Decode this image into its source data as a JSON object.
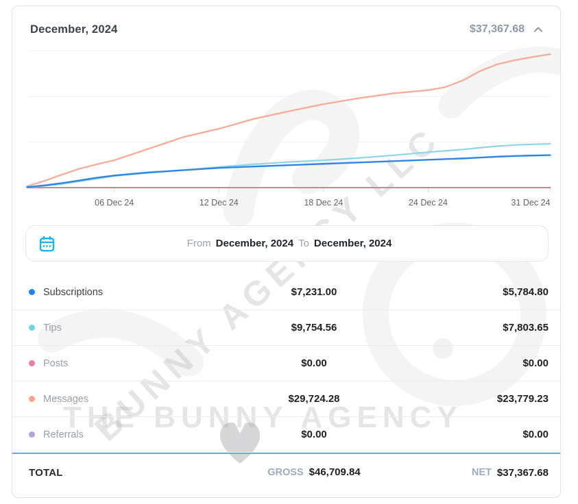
{
  "header": {
    "title": "December, 2024",
    "amount": "$37,367.68"
  },
  "date_range": {
    "from_label": "From",
    "from_value": "December, 2024",
    "to_label": "To",
    "to_value": "December, 2024"
  },
  "table": {
    "rows": [
      {
        "label": "Subscriptions",
        "gross": "$7,231.00",
        "net": "$5,784.80",
        "color": "#2186eb"
      },
      {
        "label": "Tips",
        "gross": "$9,754.56",
        "net": "$7,803.65",
        "color": "#72d5de"
      },
      {
        "label": "Posts",
        "gross": "$0.00",
        "net": "$0.00",
        "color": "#ef7da0"
      },
      {
        "label": "Messages",
        "gross": "$29,724.28",
        "net": "$23,779.23",
        "color": "#fca58a"
      },
      {
        "label": "Referrals",
        "gross": "$0.00",
        "net": "$0.00",
        "color": "#b6a3dc"
      }
    ],
    "total": {
      "label": "TOTAL",
      "gross_label": "GROSS",
      "gross_value": "$46,709.84",
      "net_label": "NET",
      "net_value": "$37,367.68"
    }
  },
  "watermark": {
    "diagonal": "BUNNY AGENCY LLC",
    "horizontal": "THE BUNNY AGENCY"
  },
  "chart_data": {
    "type": "line",
    "title": "December, 2024 cumulative earnings by category (USD)",
    "xlabel": "",
    "ylabel": "",
    "x_range": [
      1,
      31
    ],
    "ylim": [
      0,
      30500
    ],
    "grid": "horizontal",
    "gridline_count": 4,
    "legend_position": "table-below",
    "x_ticks": [
      {
        "day": 6,
        "label": "06 Dec 24"
      },
      {
        "day": 12,
        "label": "12 Dec 24"
      },
      {
        "day": 18,
        "label": "18 Dec 24"
      },
      {
        "day": 24,
        "label": "24 Dec 24"
      },
      {
        "day": 31,
        "label": "31 Dec 24"
      }
    ],
    "days": [
      1,
      2,
      3,
      4,
      5,
      6,
      8,
      10,
      12,
      14,
      16,
      18,
      20,
      22,
      24,
      25,
      26,
      27,
      28,
      29,
      30,
      31
    ],
    "series": [
      {
        "name": "Referrals",
        "color": "#b6a3dc",
        "width": 2,
        "values": [
          0,
          0,
          0,
          0,
          0,
          0,
          0,
          0,
          0,
          0,
          0,
          0,
          0,
          0,
          0,
          0,
          0,
          0,
          0,
          0,
          0,
          0
        ]
      },
      {
        "name": "Posts",
        "color": "#dc7d93",
        "width": 2,
        "values": [
          0,
          0,
          0,
          0,
          0,
          0,
          0,
          0,
          0,
          0,
          0,
          0,
          0,
          0,
          0,
          0,
          0,
          0,
          0,
          0,
          0,
          0
        ]
      },
      {
        "name": "Messages",
        "color": "#f7ae99",
        "width": 2.4,
        "values": [
          300,
          1500,
          2900,
          4200,
          5200,
          6100,
          8700,
          11300,
          13100,
          15300,
          17000,
          18600,
          19900,
          21000,
          21700,
          22400,
          23900,
          26000,
          27500,
          28400,
          29100,
          29724
        ]
      },
      {
        "name": "Tips",
        "color": "#8bd7e3",
        "width": 2.2,
        "values": [
          80,
          400,
          800,
          1400,
          2000,
          2600,
          3300,
          3900,
          4600,
          5200,
          5700,
          6100,
          6600,
          7200,
          7900,
          8200,
          8500,
          8900,
          9250,
          9500,
          9650,
          9754
        ]
      },
      {
        "name": "Subscriptions",
        "color": "#2e86e6",
        "width": 2.4,
        "values": [
          100,
          500,
          1000,
          1600,
          2200,
          2700,
          3400,
          3900,
          4400,
          4700,
          5000,
          5300,
          5600,
          5900,
          6200,
          6350,
          6500,
          6700,
          6900,
          7050,
          7150,
          7231
        ]
      }
    ]
  }
}
